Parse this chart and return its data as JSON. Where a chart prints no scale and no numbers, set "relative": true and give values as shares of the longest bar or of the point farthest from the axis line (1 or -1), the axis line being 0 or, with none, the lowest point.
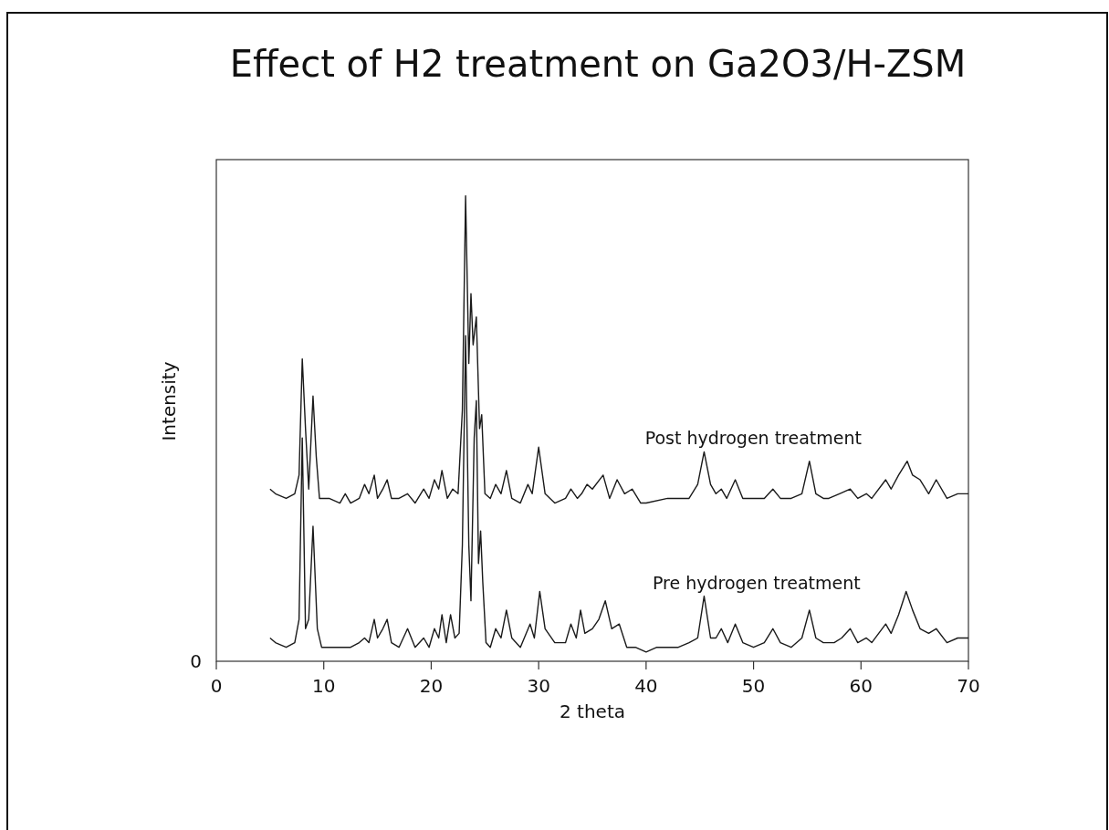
{
  "chart_data": {
    "type": "line",
    "title": "Effect of H2 treatment on Ga2O3/H-ZSM",
    "xlabel": "2 theta",
    "ylabel": "Intensity",
    "relative": true,
    "xlim": [
      0,
      70
    ],
    "xticks": [
      0,
      10,
      20,
      30,
      40,
      50,
      60,
      70
    ],
    "marker": "none",
    "line_style": "solid",
    "annotations": [
      "0"
    ],
    "x": [
      5,
      5.5,
      6.5,
      7.3,
      7.7,
      8.0,
      8.3,
      8.6,
      9.0,
      9.3,
      9.6,
      10.5,
      11.5,
      12,
      12.5,
      13.3,
      13.8,
      14.2,
      14.7,
      15.0,
      15.5,
      15.9,
      16.3,
      17,
      17.8,
      18.5,
      19.3,
      19.8,
      20.3,
      20.7,
      21.0,
      21.5,
      22.0,
      22.5,
      22.9,
      23.2,
      23.5,
      23.7,
      23.9,
      24.2,
      24.5,
      24.7,
      25.0,
      25.5,
      26.0,
      26.5,
      27.0,
      27.5,
      28.3,
      29.0,
      29.4,
      30.0,
      30.6,
      31.5,
      32.5,
      33.0,
      33.6,
      34.0,
      34.5,
      35.0,
      36.0,
      36.6,
      37.3,
      38.0,
      38.7,
      39.5,
      40.0,
      42,
      43.5,
      44.0,
      44.8,
      45.4,
      46,
      46.5,
      47,
      47.5,
      48.3,
      49,
      50,
      51,
      51.8,
      52.5,
      53.5,
      54.5,
      55.2,
      55.8,
      56.5,
      57,
      58,
      59,
      59.7,
      60.5,
      61,
      62.3,
      62.8,
      63.5,
      64.3,
      64.8,
      65.5,
      66.3,
      67,
      68,
      69,
      70
    ],
    "series": [
      {
        "name": "Post hydrogen treatment",
        "color": "#1a1a1a",
        "values": [
          0.37,
          0.36,
          0.35,
          0.36,
          0.4,
          0.65,
          0.5,
          0.37,
          0.57,
          0.44,
          0.35,
          0.35,
          0.34,
          0.36,
          0.34,
          0.35,
          0.38,
          0.36,
          0.4,
          0.35,
          0.37,
          0.39,
          0.35,
          0.35,
          0.36,
          0.34,
          0.37,
          0.35,
          0.39,
          0.37,
          0.41,
          0.35,
          0.37,
          0.36,
          0.54,
          1.0,
          0.64,
          0.79,
          0.68,
          0.74,
          0.5,
          0.53,
          0.36,
          0.35,
          0.38,
          0.36,
          0.41,
          0.35,
          0.34,
          0.38,
          0.36,
          0.46,
          0.36,
          0.34,
          0.35,
          0.37,
          0.35,
          0.36,
          0.38,
          0.37,
          0.4,
          0.35,
          0.39,
          0.36,
          0.37,
          0.34,
          0.34,
          0.35,
          0.35,
          0.35,
          0.38,
          0.45,
          0.38,
          0.36,
          0.37,
          0.35,
          0.39,
          0.35,
          0.35,
          0.35,
          0.37,
          0.35,
          0.35,
          0.36,
          0.43,
          0.36,
          0.35,
          0.35,
          0.36,
          0.37,
          0.35,
          0.36,
          0.35,
          0.39,
          0.37,
          0.4,
          0.43,
          0.4,
          0.39,
          0.36,
          0.39,
          0.35,
          0.36,
          0.36
        ]
      },
      {
        "name": "Pre hydrogen treatment",
        "color": "#1a1a1a",
        "x": [
          5,
          5.5,
          6.5,
          7.3,
          7.7,
          8.0,
          8.3,
          8.6,
          9.0,
          9.4,
          9.8,
          10.5,
          11.5,
          12.5,
          13.3,
          13.8,
          14.2,
          14.7,
          15.0,
          15.5,
          15.9,
          16.3,
          17,
          17.8,
          18.5,
          19.3,
          19.8,
          20.3,
          20.7,
          21.0,
          21.4,
          21.8,
          22.2,
          22.6,
          22.9,
          23.2,
          23.5,
          23.7,
          24.0,
          24.2,
          24.4,
          24.6,
          24.8,
          25.1,
          25.5,
          26,
          26.5,
          27,
          27.5,
          28.3,
          29.2,
          29.6,
          30.1,
          30.6,
          31.5,
          32.5,
          33,
          33.5,
          33.9,
          34.3,
          35,
          35.6,
          36.2,
          36.8,
          37.5,
          38.2,
          39,
          40,
          41,
          42,
          43,
          44,
          44.8,
          45.4,
          46,
          46.5,
          47,
          47.6,
          48.3,
          49,
          50,
          51,
          51.8,
          52.5,
          53.5,
          54.5,
          55.2,
          55.8,
          56.5,
          57.5,
          58.2,
          59,
          59.7,
          60.5,
          61,
          62.3,
          62.8,
          63.5,
          64.2,
          64.8,
          65.5,
          66.3,
          67,
          68,
          69,
          70
        ],
        "values": [
          0.05,
          0.04,
          0.03,
          0.04,
          0.09,
          0.48,
          0.07,
          0.09,
          0.29,
          0.07,
          0.03,
          0.03,
          0.03,
          0.03,
          0.04,
          0.05,
          0.04,
          0.09,
          0.05,
          0.07,
          0.09,
          0.04,
          0.03,
          0.07,
          0.03,
          0.05,
          0.03,
          0.07,
          0.05,
          0.1,
          0.04,
          0.1,
          0.05,
          0.06,
          0.25,
          0.7,
          0.25,
          0.13,
          0.48,
          0.56,
          0.21,
          0.28,
          0.17,
          0.04,
          0.03,
          0.07,
          0.05,
          0.11,
          0.05,
          0.03,
          0.08,
          0.05,
          0.15,
          0.07,
          0.04,
          0.04,
          0.08,
          0.05,
          0.11,
          0.06,
          0.07,
          0.09,
          0.13,
          0.07,
          0.08,
          0.03,
          0.03,
          0.02,
          0.03,
          0.03,
          0.03,
          0.04,
          0.05,
          0.14,
          0.05,
          0.05,
          0.07,
          0.04,
          0.08,
          0.04,
          0.03,
          0.04,
          0.07,
          0.04,
          0.03,
          0.05,
          0.11,
          0.05,
          0.04,
          0.04,
          0.05,
          0.07,
          0.04,
          0.05,
          0.04,
          0.08,
          0.06,
          0.1,
          0.15,
          0.11,
          0.07,
          0.06,
          0.07,
          0.04,
          0.05,
          0.05
        ]
      }
    ]
  }
}
